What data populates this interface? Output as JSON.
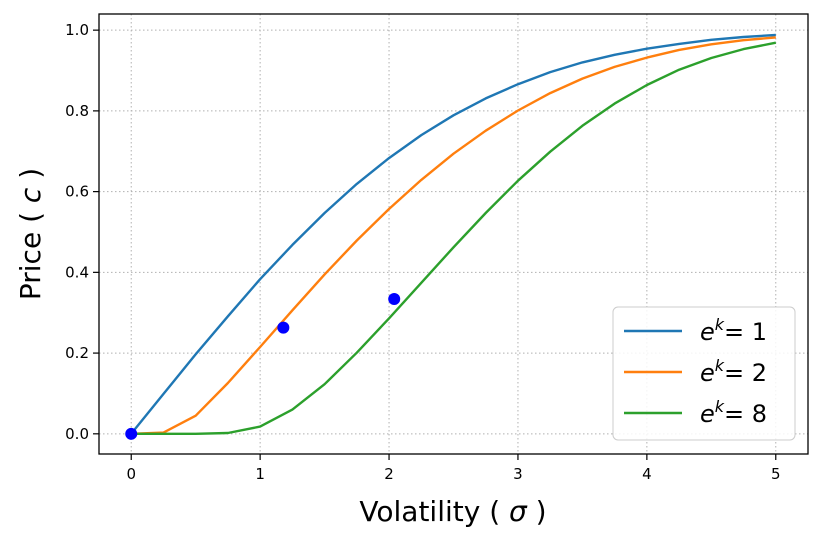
{
  "chart_data": {
    "type": "line",
    "xlabel_text": "Volatility ( ",
    "xlabel_symbol": "σ",
    "xlabel_end": " )",
    "ylabel_text": "Price ( ",
    "ylabel_symbol": "c",
    "ylabel_end": " )",
    "xlim": [
      -0.25,
      5.25
    ],
    "ylim": [
      -0.05,
      1.04
    ],
    "xticks": [
      0,
      1,
      2,
      3,
      4,
      5
    ],
    "yticks": [
      0.0,
      0.2,
      0.4,
      0.6,
      0.8,
      1.0
    ],
    "xtick_labels": [
      "0",
      "1",
      "2",
      "3",
      "4",
      "5"
    ],
    "ytick_labels": [
      "0.0",
      "0.2",
      "0.4",
      "0.6",
      "0.8",
      "1.0"
    ],
    "grid": true,
    "legend_position": "lower-right",
    "x": [
      0,
      0.25,
      0.5,
      0.75,
      1.0,
      1.25,
      1.5,
      1.75,
      2.0,
      2.25,
      2.5,
      2.75,
      3.0,
      3.25,
      3.5,
      3.75,
      4.0,
      4.25,
      4.5,
      4.75,
      5.0
    ],
    "series": [
      {
        "name_base": "e",
        "name_sup": "k",
        "name_value": "= 1",
        "color": "#1f77b4",
        "values": [
          0.0,
          0.099,
          0.197,
          0.291,
          0.383,
          0.468,
          0.547,
          0.619,
          0.683,
          0.74,
          0.789,
          0.831,
          0.866,
          0.896,
          0.92,
          0.939,
          0.954,
          0.966,
          0.976,
          0.983,
          0.988
        ]
      },
      {
        "name_base": "e",
        "name_sup": "k",
        "name_value": "= 2",
        "color": "#ff7f0e",
        "values": [
          0.0,
          0.003,
          0.045,
          0.126,
          0.215,
          0.306,
          0.395,
          0.479,
          0.557,
          0.629,
          0.694,
          0.751,
          0.801,
          0.844,
          0.88,
          0.909,
          0.932,
          0.951,
          0.965,
          0.975,
          0.982
        ]
      },
      {
        "name_base": "e",
        "name_sup": "k",
        "name_value": "= 8",
        "color": "#2ca02c",
        "values": [
          0.0,
          0.0,
          0.0,
          0.002,
          0.018,
          0.06,
          0.123,
          0.201,
          0.286,
          0.374,
          0.462,
          0.547,
          0.627,
          0.699,
          0.763,
          0.818,
          0.864,
          0.902,
          0.931,
          0.953,
          0.969
        ]
      }
    ],
    "markers": {
      "color": "#0000ff",
      "points": [
        [
          0,
          0.0
        ],
        [
          1.18,
          0.263
        ],
        [
          2.04,
          0.334
        ]
      ]
    }
  }
}
